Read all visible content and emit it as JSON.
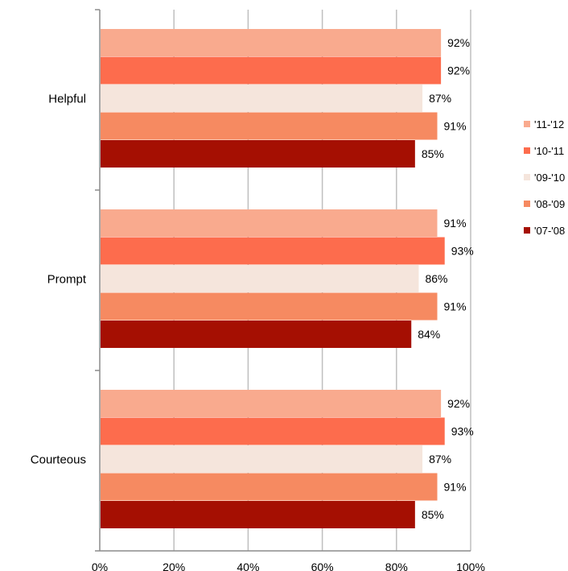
{
  "chart_data": {
    "type": "bar",
    "orientation": "horizontal",
    "categories": [
      "Helpful",
      "Prompt",
      "Courteous"
    ],
    "series": [
      {
        "name": "'11-'12",
        "color": "#F9AA8E",
        "values": [
          92,
          91,
          92
        ],
        "labels": [
          "92%",
          "91%",
          "92%"
        ]
      },
      {
        "name": "'10-'11",
        "color": "#FD6C4D",
        "values": [
          92,
          93,
          93
        ],
        "labels": [
          "92%",
          "93%",
          "93%"
        ]
      },
      {
        "name": "'09-'10",
        "color": "#F5E5DC",
        "values": [
          87,
          86,
          87
        ],
        "labels": [
          "87%",
          "86%",
          "87%"
        ]
      },
      {
        "name": "'08-'09",
        "color": "#F68A61",
        "values": [
          91,
          91,
          91
        ],
        "labels": [
          "91%",
          "91%",
          "91%"
        ]
      },
      {
        "name": "'07-'08",
        "color": "#A50F02",
        "values": [
          85,
          84,
          85
        ],
        "labels": [
          "85%",
          "84%",
          "85%"
        ]
      }
    ],
    "xaxis": {
      "min": 0,
      "max": 100,
      "ticks": [
        0,
        20,
        40,
        60,
        80,
        100
      ],
      "tick_labels": [
        "0%",
        "20%",
        "40%",
        "60%",
        "80%",
        "100%"
      ]
    },
    "grid": "vertical",
    "legend_position": "right"
  }
}
